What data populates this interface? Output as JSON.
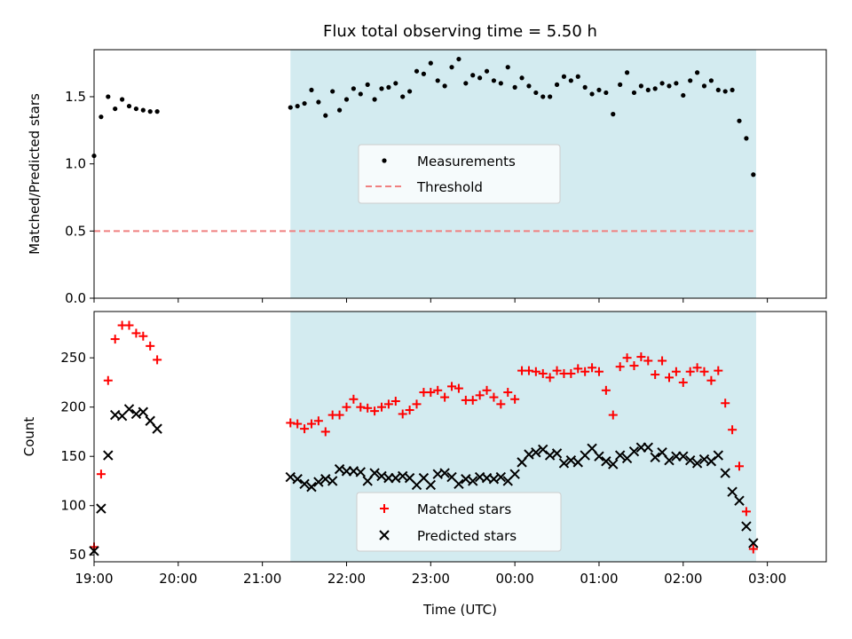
{
  "chart_data": [
    {
      "type": "scatter",
      "title": "Flux total observing time = 5.50 h",
      "xlabel": "",
      "ylabel": "Matched/Predicted stars",
      "ylim": [
        0,
        1.85
      ],
      "yticks": [
        "0.0",
        "0.5",
        "1.0",
        "1.5"
      ],
      "x_axis": "Time (UTC), hours from 19:00 (tick labels hidden on this panel)",
      "highlight_span": {
        "start": "21:20",
        "end": "02:52",
        "color": "#d3ebf0"
      },
      "legend": {
        "position": "center",
        "entries": [
          "Measurements",
          "Threshold"
        ]
      },
      "series": [
        {
          "name": "Measurements",
          "marker": "dot",
          "color": "#000000",
          "points": [
            [
              "19:00",
              1.06
            ],
            [
              "19:05",
              1.35
            ],
            [
              "19:10",
              1.5
            ],
            [
              "19:15",
              1.41
            ],
            [
              "19:20",
              1.48
            ],
            [
              "19:25",
              1.43
            ],
            [
              "19:30",
              1.41
            ],
            [
              "19:35",
              1.4
            ],
            [
              "19:40",
              1.39
            ],
            [
              "19:45",
              1.39
            ],
            [
              "21:20",
              1.42
            ],
            [
              "21:25",
              1.43
            ],
            [
              "21:30",
              1.45
            ],
            [
              "21:35",
              1.55
            ],
            [
              "21:40",
              1.46
            ],
            [
              "21:45",
              1.36
            ],
            [
              "21:50",
              1.54
            ],
            [
              "21:55",
              1.4
            ],
            [
              "22:00",
              1.48
            ],
            [
              "22:05",
              1.56
            ],
            [
              "22:10",
              1.52
            ],
            [
              "22:15",
              1.59
            ],
            [
              "22:20",
              1.48
            ],
            [
              "22:25",
              1.56
            ],
            [
              "22:30",
              1.57
            ],
            [
              "22:35",
              1.6
            ],
            [
              "22:40",
              1.5
            ],
            [
              "22:45",
              1.54
            ],
            [
              "22:50",
              1.69
            ],
            [
              "22:55",
              1.67
            ],
            [
              "23:00",
              1.75
            ],
            [
              "23:05",
              1.62
            ],
            [
              "23:10",
              1.58
            ],
            [
              "23:15",
              1.72
            ],
            [
              "23:20",
              1.78
            ],
            [
              "23:25",
              1.6
            ],
            [
              "23:30",
              1.66
            ],
            [
              "23:35",
              1.64
            ],
            [
              "23:40",
              1.69
            ],
            [
              "23:45",
              1.62
            ],
            [
              "23:50",
              1.6
            ],
            [
              "23:55",
              1.72
            ],
            [
              "00:00",
              1.57
            ],
            [
              "00:05",
              1.64
            ],
            [
              "00:10",
              1.58
            ],
            [
              "00:15",
              1.53
            ],
            [
              "00:20",
              1.5
            ],
            [
              "00:25",
              1.5
            ],
            [
              "00:30",
              1.59
            ],
            [
              "00:35",
              1.65
            ],
            [
              "00:40",
              1.62
            ],
            [
              "00:45",
              1.65
            ],
            [
              "00:50",
              1.57
            ],
            [
              "00:55",
              1.52
            ],
            [
              "01:00",
              1.55
            ],
            [
              "01:05",
              1.53
            ],
            [
              "01:10",
              1.37
            ],
            [
              "01:15",
              1.59
            ],
            [
              "01:20",
              1.68
            ],
            [
              "01:25",
              1.53
            ],
            [
              "01:30",
              1.58
            ],
            [
              "01:35",
              1.55
            ],
            [
              "01:40",
              1.56
            ],
            [
              "01:45",
              1.6
            ],
            [
              "01:50",
              1.58
            ],
            [
              "01:55",
              1.6
            ],
            [
              "02:00",
              1.51
            ],
            [
              "02:05",
              1.62
            ],
            [
              "02:10",
              1.68
            ],
            [
              "02:15",
              1.58
            ],
            [
              "02:20",
              1.62
            ],
            [
              "02:25",
              1.55
            ],
            [
              "02:30",
              1.54
            ],
            [
              "02:35",
              1.55
            ],
            [
              "02:40",
              1.32
            ],
            [
              "02:45",
              1.19
            ],
            [
              "02:50",
              0.92
            ]
          ]
        },
        {
          "name": "Threshold",
          "marker": "dashed-line",
          "color": "#f08080",
          "points": [
            [
              "19:00",
              0.5
            ],
            [
              "02:50",
              0.5
            ]
          ]
        }
      ]
    },
    {
      "type": "scatter",
      "title": "",
      "xlabel": "Time (UTC)",
      "ylabel": "Count",
      "ylim": [
        43,
        297
      ],
      "yticks": [
        "50",
        "100",
        "150",
        "200",
        "250"
      ],
      "xticks": [
        "19:00",
        "20:00",
        "21:00",
        "22:00",
        "23:00",
        "00:00",
        "01:00",
        "02:00",
        "03:00"
      ],
      "highlight_span": {
        "start": "21:20",
        "end": "02:52",
        "color": "#d3ebf0"
      },
      "legend": {
        "position": "lower center",
        "entries": [
          "Matched stars",
          "Predicted stars"
        ]
      },
      "series": [
        {
          "name": "Matched stars",
          "marker": "plus",
          "color": "#ff0000",
          "points": [
            [
              "19:00",
              58
            ],
            [
              "19:05",
              132
            ],
            [
              "19:10",
              227
            ],
            [
              "19:15",
              269
            ],
            [
              "19:20",
              283
            ],
            [
              "19:25",
              283
            ],
            [
              "19:30",
              275
            ],
            [
              "19:35",
              272
            ],
            [
              "19:40",
              262
            ],
            [
              "19:45",
              248
            ],
            [
              "21:20",
              184
            ],
            [
              "21:25",
              183
            ],
            [
              "21:30",
              178
            ],
            [
              "21:35",
              183
            ],
            [
              "21:40",
              186
            ],
            [
              "21:45",
              175
            ],
            [
              "21:50",
              192
            ],
            [
              "21:55",
              192
            ],
            [
              "22:00",
              200
            ],
            [
              "22:05",
              208
            ],
            [
              "22:10",
              200
            ],
            [
              "22:15",
              199
            ],
            [
              "22:20",
              196
            ],
            [
              "22:25",
              200
            ],
            [
              "22:30",
              203
            ],
            [
              "22:35",
              206
            ],
            [
              "22:40",
              193
            ],
            [
              "22:45",
              197
            ],
            [
              "22:50",
              203
            ],
            [
              "22:55",
              215
            ],
            [
              "23:00",
              215
            ],
            [
              "23:05",
              217
            ],
            [
              "23:10",
              210
            ],
            [
              "23:15",
              221
            ],
            [
              "23:20",
              219
            ],
            [
              "23:25",
              207
            ],
            [
              "23:30",
              207
            ],
            [
              "23:35",
              212
            ],
            [
              "23:40",
              217
            ],
            [
              "23:45",
              210
            ],
            [
              "23:50",
              203
            ],
            [
              "23:55",
              215
            ],
            [
              "00:00",
              208
            ],
            [
              "00:05",
              237
            ],
            [
              "00:10",
              237
            ],
            [
              "00:15",
              236
            ],
            [
              "00:20",
              234
            ],
            [
              "00:25",
              230
            ],
            [
              "00:30",
              237
            ],
            [
              "00:35",
              234
            ],
            [
              "00:40",
              234
            ],
            [
              "00:45",
              239
            ],
            [
              "00:50",
              236
            ],
            [
              "00:55",
              240
            ],
            [
              "01:00",
              236
            ],
            [
              "01:05",
              217
            ],
            [
              "01:10",
              192
            ],
            [
              "01:15",
              241
            ],
            [
              "01:20",
              250
            ],
            [
              "01:25",
              242
            ],
            [
              "01:30",
              251
            ],
            [
              "01:35",
              247
            ],
            [
              "01:40",
              233
            ],
            [
              "01:45",
              247
            ],
            [
              "01:50",
              230
            ],
            [
              "01:55",
              236
            ],
            [
              "02:00",
              225
            ],
            [
              "02:05",
              236
            ],
            [
              "02:10",
              240
            ],
            [
              "02:15",
              236
            ],
            [
              "02:20",
              227
            ],
            [
              "02:25",
              237
            ],
            [
              "02:30",
              204
            ],
            [
              "02:35",
              177
            ],
            [
              "02:40",
              140
            ],
            [
              "02:45",
              94
            ],
            [
              "02:50",
              56
            ]
          ]
        },
        {
          "name": "Predicted stars",
          "marker": "x",
          "color": "#000000",
          "points": [
            [
              "19:00",
              54
            ],
            [
              "19:05",
              97
            ],
            [
              "19:10",
              151
            ],
            [
              "19:15",
              192
            ],
            [
              "19:20",
              191
            ],
            [
              "19:25",
              198
            ],
            [
              "19:30",
              193
            ],
            [
              "19:35",
              195
            ],
            [
              "19:40",
              186
            ],
            [
              "19:45",
              178
            ],
            [
              "21:20",
              129
            ],
            [
              "21:25",
              127
            ],
            [
              "21:30",
              122
            ],
            [
              "21:35",
              119
            ],
            [
              "21:40",
              124
            ],
            [
              "21:45",
              127
            ],
            [
              "21:50",
              125
            ],
            [
              "21:55",
              137
            ],
            [
              "22:00",
              135
            ],
            [
              "22:05",
              135
            ],
            [
              "22:10",
              134
            ],
            [
              "22:15",
              125
            ],
            [
              "22:20",
              133
            ],
            [
              "22:25",
              130
            ],
            [
              "22:30",
              128
            ],
            [
              "22:35",
              128
            ],
            [
              "22:40",
              130
            ],
            [
              "22:45",
              128
            ],
            [
              "22:50",
              121
            ],
            [
              "22:55",
              128
            ],
            [
              "23:00",
              121
            ],
            [
              "23:05",
              132
            ],
            [
              "23:10",
              133
            ],
            [
              "23:15",
              129
            ],
            [
              "23:20",
              122
            ],
            [
              "23:25",
              127
            ],
            [
              "23:30",
              125
            ],
            [
              "23:35",
              129
            ],
            [
              "23:40",
              128
            ],
            [
              "23:45",
              127
            ],
            [
              "23:50",
              129
            ],
            [
              "23:55",
              125
            ],
            [
              "00:00",
              132
            ],
            [
              "00:05",
              144
            ],
            [
              "00:10",
              152
            ],
            [
              "00:15",
              154
            ],
            [
              "00:20",
              157
            ],
            [
              "00:25",
              151
            ],
            [
              "00:30",
              153
            ],
            [
              "00:35",
              143
            ],
            [
              "00:40",
              146
            ],
            [
              "00:45",
              144
            ],
            [
              "00:50",
              151
            ],
            [
              "00:55",
              158
            ],
            [
              "01:00",
              150
            ],
            [
              "01:05",
              145
            ],
            [
              "01:10",
              142
            ],
            [
              "01:15",
              151
            ],
            [
              "01:20",
              148
            ],
            [
              "01:25",
              155
            ],
            [
              "01:30",
              159
            ],
            [
              "01:35",
              159
            ],
            [
              "01:40",
              149
            ],
            [
              "01:45",
              154
            ],
            [
              "01:50",
              146
            ],
            [
              "01:55",
              150
            ],
            [
              "02:00",
              150
            ],
            [
              "02:05",
              146
            ],
            [
              "02:10",
              143
            ],
            [
              "02:15",
              147
            ],
            [
              "02:20",
              145
            ],
            [
              "02:25",
              151
            ],
            [
              "02:30",
              133
            ],
            [
              "02:35",
              114
            ],
            [
              "02:40",
              105
            ],
            [
              "02:45",
              79
            ],
            [
              "02:50",
              62
            ]
          ]
        }
      ]
    }
  ]
}
